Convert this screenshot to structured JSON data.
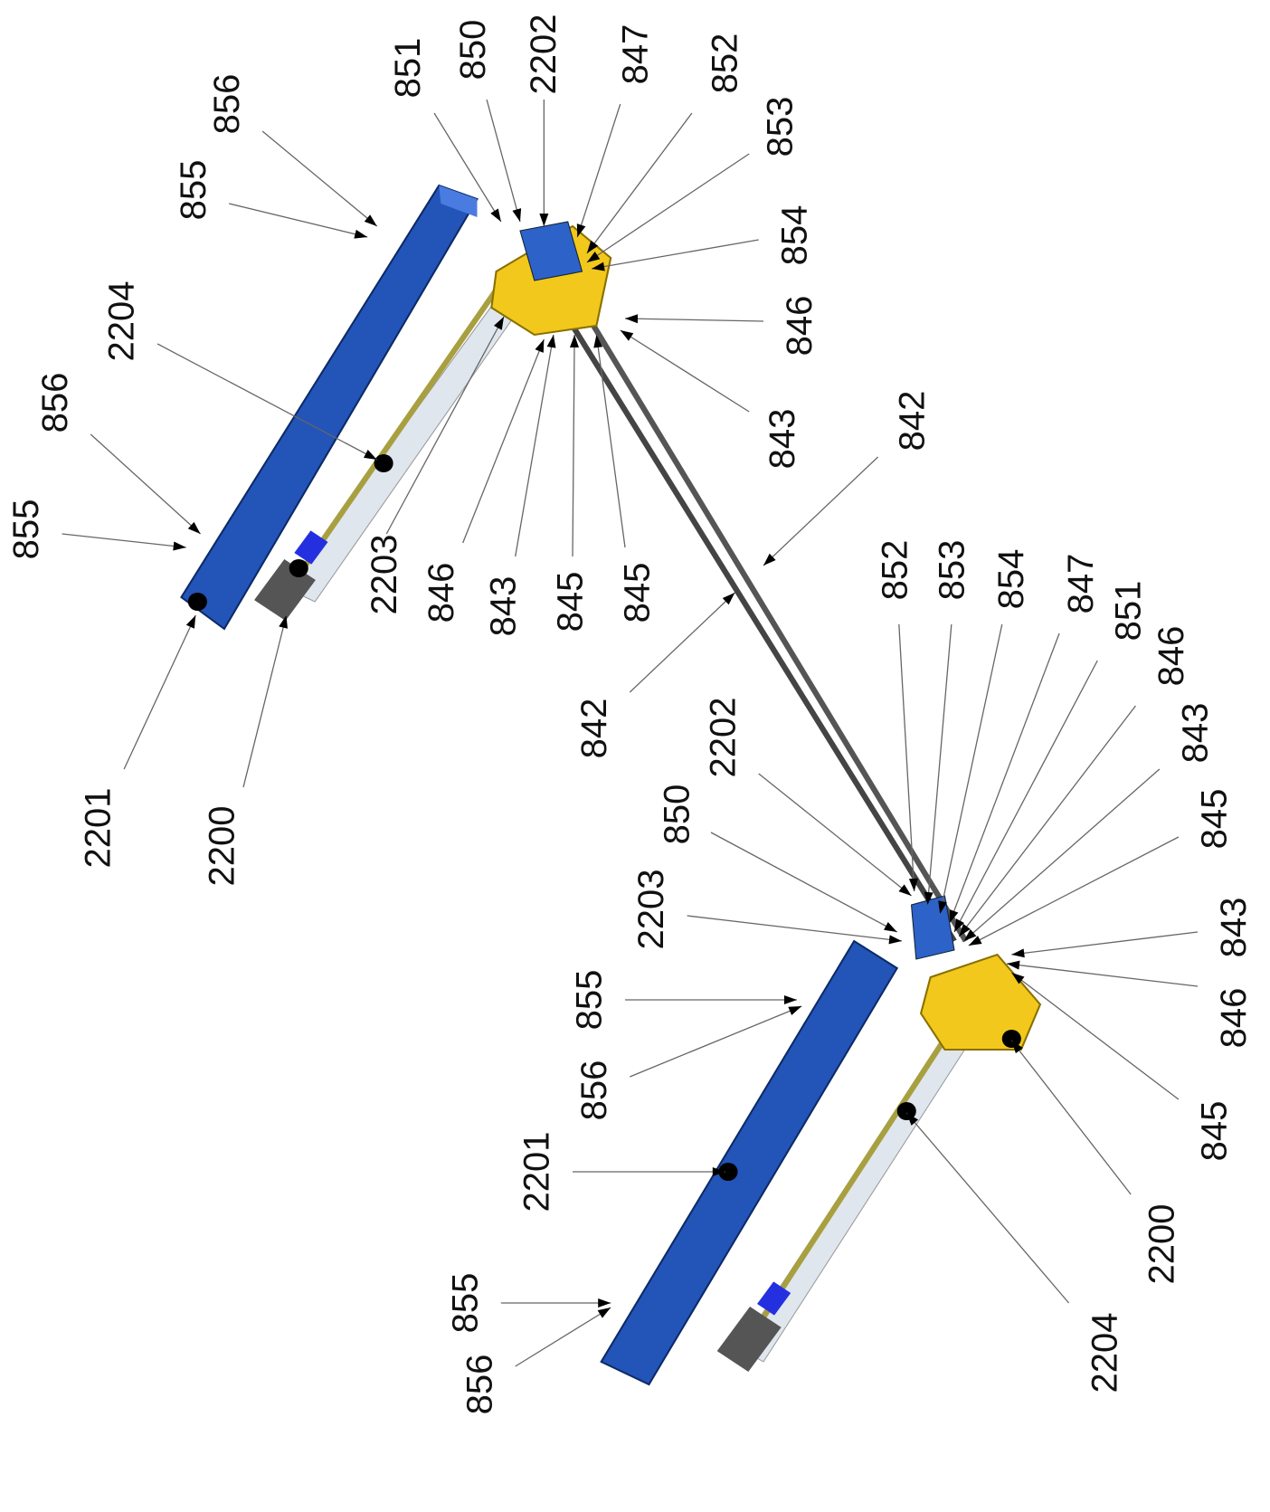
{
  "labels": [
    "856",
    "855",
    "851",
    "850",
    "2202",
    "847",
    "852",
    "853",
    "854",
    "846",
    "843",
    "842",
    "2204",
    "856",
    "855",
    "2203",
    "846",
    "843",
    "845",
    "845",
    "2201",
    "2200",
    "842",
    "852",
    "853",
    "854",
    "847",
    "851",
    "846",
    "843",
    "845",
    "2202",
    "850",
    "2203",
    "855",
    "856",
    "2201",
    "843",
    "846",
    "845",
    "2200",
    "2204",
    "855",
    "856"
  ]
}
